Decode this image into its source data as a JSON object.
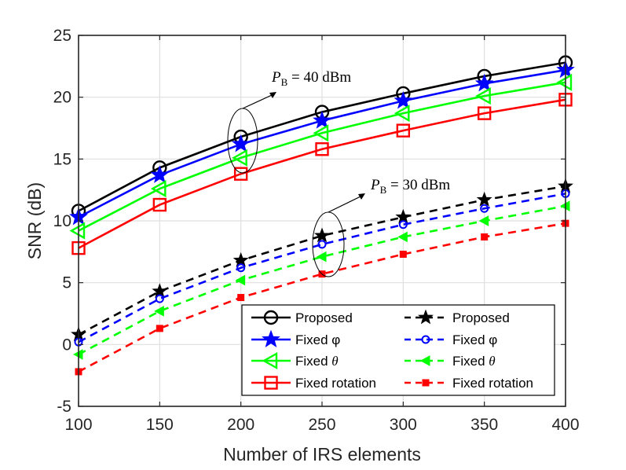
{
  "chart_data": {
    "type": "line",
    "title": "",
    "xlabel": "Number of IRS elements",
    "ylabel": "SNR (dB)",
    "xlim": [
      100,
      400
    ],
    "ylim": [
      -5,
      25
    ],
    "xticks": [
      100,
      150,
      200,
      250,
      300,
      350,
      400
    ],
    "yticks": [
      -5,
      0,
      5,
      10,
      15,
      20,
      25
    ],
    "grid": true,
    "legend_position": "bottom-right",
    "x": [
      100,
      150,
      200,
      250,
      300,
      350,
      400
    ],
    "series": [
      {
        "name": "Proposed",
        "group": "40",
        "color": "#000000",
        "dash": "solid",
        "marker": "circle",
        "values": [
          10.8,
          14.3,
          16.8,
          18.8,
          20.3,
          21.7,
          22.8
        ]
      },
      {
        "name": "Fixed φ",
        "group": "40",
        "color": "#0000ff",
        "dash": "solid",
        "marker": "star",
        "values": [
          10.3,
          13.7,
          16.2,
          18.1,
          19.7,
          21.1,
          22.2
        ]
      },
      {
        "name": "Fixed θ",
        "group": "40",
        "color": "#00ff00",
        "dash": "solid",
        "marker": "tri-left",
        "values": [
          9.2,
          12.6,
          15.1,
          17.1,
          18.7,
          20.1,
          21.2
        ]
      },
      {
        "name": "Fixed rotation",
        "group": "40",
        "color": "#ff0000",
        "dash": "solid",
        "marker": "square",
        "values": [
          7.8,
          11.3,
          13.8,
          15.8,
          17.3,
          18.7,
          19.8
        ]
      },
      {
        "name": "Proposed",
        "group": "30",
        "color": "#000000",
        "dash": "dashed",
        "marker": "star-filled",
        "values": [
          0.8,
          4.3,
          6.8,
          8.8,
          10.3,
          11.7,
          12.8
        ]
      },
      {
        "name": "Fixed φ",
        "group": "30",
        "color": "#0000ff",
        "dash": "dashed",
        "marker": "circle-small",
        "values": [
          0.2,
          3.7,
          6.2,
          8.1,
          9.7,
          11.0,
          12.2
        ]
      },
      {
        "name": "Fixed θ",
        "group": "30",
        "color": "#00ff00",
        "dash": "dashed",
        "marker": "tri-left-filled",
        "values": [
          -0.8,
          2.7,
          5.2,
          7.1,
          8.7,
          10.0,
          11.2
        ]
      },
      {
        "name": "Fixed rotation",
        "group": "30",
        "color": "#ff0000",
        "dash": "dashed",
        "marker": "square-small",
        "values": [
          -2.2,
          1.3,
          3.8,
          5.7,
          7.3,
          8.7,
          9.8
        ]
      }
    ],
    "legend_labels": [
      "Proposed",
      "Fixed φ",
      "Fixed θ",
      "Fixed rotation",
      "Proposed",
      "Fixed φ",
      "Fixed θ",
      "Fixed rotation"
    ],
    "annotations": [
      {
        "text_var": "P",
        "text_sub": "B",
        "text_rest": " = 40 dBm"
      },
      {
        "text_var": "P",
        "text_sub": "B",
        "text_rest": " = 30 dBm"
      }
    ]
  }
}
